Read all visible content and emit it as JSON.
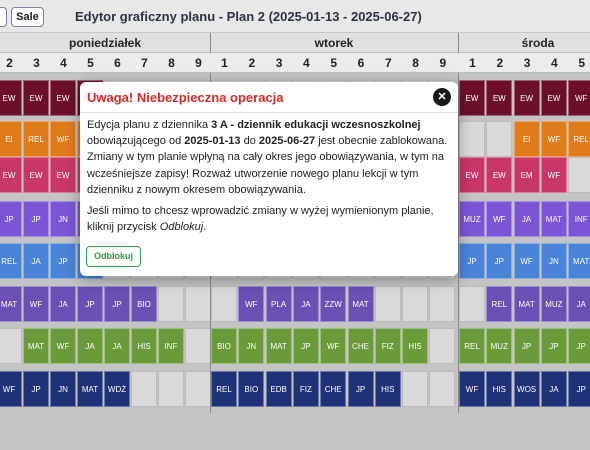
{
  "header": {
    "prev_button_label": "",
    "sale_button_label": "Sale",
    "title": "Edytor graficzny planu - Plan 2 (2025-01-13 - 2025-06-27)"
  },
  "days": [
    "poniedziałek",
    "wtorek",
    "środa"
  ],
  "lesson_numbers": {
    "poniedzialek": [
      "2",
      "3",
      "4",
      "5",
      "6",
      "7",
      "8",
      "9"
    ],
    "wtorek": [
      "1",
      "2",
      "3",
      "4",
      "5",
      "6",
      "7",
      "8",
      "9"
    ],
    "sroda": [
      "1",
      "2",
      "3",
      "4",
      "5"
    ]
  },
  "grid_rows": [
    {
      "cells": [
        {
          "t": "EW",
          "c": "#6b0f2a"
        },
        {
          "t": "EW",
          "c": "#6b0f2a"
        },
        {
          "t": "EW",
          "c": "#6b0f2a"
        },
        {
          "t": "",
          "c": "#6b0f2a"
        },
        {
          "t": "",
          "c": ""
        },
        {
          "t": "",
          "c": ""
        },
        {
          "t": "",
          "c": ""
        },
        {
          "t": "",
          "c": ""
        },
        {
          "t": "",
          "c": ""
        },
        {
          "t": "",
          "c": ""
        },
        {
          "t": "",
          "c": ""
        },
        {
          "t": "",
          "c": ""
        },
        {
          "t": "",
          "c": ""
        },
        {
          "t": "",
          "c": ""
        },
        {
          "t": "",
          "c": ""
        },
        {
          "t": "",
          "c": ""
        },
        {
          "t": "",
          "c": ""
        },
        {
          "t": "EW",
          "c": "#6b0f2a"
        },
        {
          "t": "EW",
          "c": "#6b0f2a"
        },
        {
          "t": "EW",
          "c": "#6b0f2a"
        },
        {
          "t": "EW",
          "c": "#6b0f2a"
        },
        {
          "t": "WF",
          "c": "#6b0f2a"
        }
      ]
    },
    {
      "cells": [
        {
          "t": "EI",
          "c": "#e07b1a"
        },
        {
          "t": "REL",
          "c": "#e07b1a"
        },
        {
          "t": "WF",
          "c": "#e07b1a"
        },
        {
          "t": "",
          "c": "#e07b1a"
        },
        {
          "t": "",
          "c": ""
        },
        {
          "t": "",
          "c": ""
        },
        {
          "t": "",
          "c": ""
        },
        {
          "t": "",
          "c": ""
        },
        {
          "t": "",
          "c": ""
        },
        {
          "t": "",
          "c": ""
        },
        {
          "t": "",
          "c": ""
        },
        {
          "t": "",
          "c": ""
        },
        {
          "t": "",
          "c": ""
        },
        {
          "t": "",
          "c": ""
        },
        {
          "t": "",
          "c": ""
        },
        {
          "t": "",
          "c": ""
        },
        {
          "t": "",
          "c": ""
        },
        {
          "t": "",
          "c": ""
        },
        {
          "t": "",
          "c": ""
        },
        {
          "t": "EI",
          "c": "#e07b1a"
        },
        {
          "t": "WF",
          "c": "#e07b1a"
        },
        {
          "t": "REL",
          "c": "#e07b1a"
        }
      ]
    },
    {
      "cells": [
        {
          "t": "EW",
          "c": "#c9366a"
        },
        {
          "t": "EW",
          "c": "#c9366a"
        },
        {
          "t": "EW",
          "c": "#c9366a"
        },
        {
          "t": "",
          "c": "#c9366a"
        },
        {
          "t": "",
          "c": ""
        },
        {
          "t": "",
          "c": ""
        },
        {
          "t": "",
          "c": ""
        },
        {
          "t": "",
          "c": ""
        },
        {
          "t": "",
          "c": ""
        },
        {
          "t": "",
          "c": ""
        },
        {
          "t": "",
          "c": ""
        },
        {
          "t": "",
          "c": ""
        },
        {
          "t": "",
          "c": ""
        },
        {
          "t": "",
          "c": ""
        },
        {
          "t": "",
          "c": ""
        },
        {
          "t": "",
          "c": ""
        },
        {
          "t": "",
          "c": ""
        },
        {
          "t": "EW",
          "c": "#c9366a"
        },
        {
          "t": "EW",
          "c": "#c9366a"
        },
        {
          "t": "EM",
          "c": "#c9366a"
        },
        {
          "t": "WF",
          "c": "#c9366a"
        },
        {
          "t": "",
          "c": ""
        }
      ]
    },
    {
      "cells": [
        {
          "t": "JP",
          "c": "#7b55d6"
        },
        {
          "t": "JP",
          "c": "#7b55d6"
        },
        {
          "t": "JN",
          "c": "#7b55d6"
        },
        {
          "t": "",
          "c": "#7b55d6"
        },
        {
          "t": "",
          "c": ""
        },
        {
          "t": "",
          "c": ""
        },
        {
          "t": "",
          "c": ""
        },
        {
          "t": "",
          "c": ""
        },
        {
          "t": "",
          "c": ""
        },
        {
          "t": "",
          "c": ""
        },
        {
          "t": "",
          "c": ""
        },
        {
          "t": "",
          "c": ""
        },
        {
          "t": "",
          "c": ""
        },
        {
          "t": "",
          "c": ""
        },
        {
          "t": "",
          "c": ""
        },
        {
          "t": "",
          "c": ""
        },
        {
          "t": "",
          "c": ""
        },
        {
          "t": "MUZ",
          "c": "#7b55d6"
        },
        {
          "t": "WF",
          "c": "#7b55d6"
        },
        {
          "t": "JA",
          "c": "#7b55d6"
        },
        {
          "t": "MAT",
          "c": "#7b55d6"
        },
        {
          "t": "INF",
          "c": "#7b55d6"
        }
      ]
    },
    {
      "cells": [
        {
          "t": "REL",
          "c": "#4a84d8"
        },
        {
          "t": "JA",
          "c": "#4a84d8"
        },
        {
          "t": "JP",
          "c": "#4a84d8"
        },
        {
          "t": "",
          "c": "#4a84d8"
        },
        {
          "t": "",
          "c": ""
        },
        {
          "t": "",
          "c": ""
        },
        {
          "t": "",
          "c": ""
        },
        {
          "t": "",
          "c": ""
        },
        {
          "t": "",
          "c": ""
        },
        {
          "t": "",
          "c": ""
        },
        {
          "t": "",
          "c": ""
        },
        {
          "t": "",
          "c": ""
        },
        {
          "t": "",
          "c": ""
        },
        {
          "t": "",
          "c": ""
        },
        {
          "t": "",
          "c": ""
        },
        {
          "t": "",
          "c": ""
        },
        {
          "t": "",
          "c": ""
        },
        {
          "t": "JP",
          "c": "#4a84d8"
        },
        {
          "t": "JP",
          "c": "#4a84d8"
        },
        {
          "t": "WF",
          "c": "#4a84d8"
        },
        {
          "t": "JN",
          "c": "#4a84d8"
        },
        {
          "t": "MAT",
          "c": "#4a84d8"
        }
      ]
    },
    {
      "cells": [
        {
          "t": "MAT",
          "c": "#6a4fb5"
        },
        {
          "t": "WF",
          "c": "#6a4fb5"
        },
        {
          "t": "JA",
          "c": "#6a4fb5"
        },
        {
          "t": "JP",
          "c": "#6a4fb5"
        },
        {
          "t": "JP",
          "c": "#6a4fb5"
        },
        {
          "t": "BIO",
          "c": "#6a4fb5"
        },
        {
          "t": "",
          "c": ""
        },
        {
          "t": "",
          "c": ""
        },
        {
          "t": "",
          "c": ""
        },
        {
          "t": "WF",
          "c": "#6a4fb5"
        },
        {
          "t": "PLA",
          "c": "#6a4fb5"
        },
        {
          "t": "JA",
          "c": "#6a4fb5"
        },
        {
          "t": "ZZW",
          "c": "#6a4fb5"
        },
        {
          "t": "MAT",
          "c": "#6a4fb5"
        },
        {
          "t": "",
          "c": ""
        },
        {
          "t": "",
          "c": ""
        },
        {
          "t": "",
          "c": ""
        },
        {
          "t": "",
          "c": ""
        },
        {
          "t": "REL",
          "c": "#6a4fb5"
        },
        {
          "t": "MAT",
          "c": "#6a4fb5"
        },
        {
          "t": "MUZ",
          "c": "#6a4fb5"
        },
        {
          "t": "JA",
          "c": "#6a4fb5"
        }
      ]
    },
    {
      "cells": [
        {
          "t": "",
          "c": ""
        },
        {
          "t": "MAT",
          "c": "#6b9a3a"
        },
        {
          "t": "WF",
          "c": "#6b9a3a"
        },
        {
          "t": "JA",
          "c": "#6b9a3a"
        },
        {
          "t": "JA",
          "c": "#6b9a3a"
        },
        {
          "t": "HIS",
          "c": "#6b9a3a"
        },
        {
          "t": "INF",
          "c": "#6b9a3a"
        },
        {
          "t": "",
          "c": ""
        },
        {
          "t": "BIO",
          "c": "#6b9a3a"
        },
        {
          "t": "JN",
          "c": "#6b9a3a"
        },
        {
          "t": "MAT",
          "c": "#6b9a3a"
        },
        {
          "t": "JP",
          "c": "#6b9a3a"
        },
        {
          "t": "WF",
          "c": "#6b9a3a"
        },
        {
          "t": "CHE",
          "c": "#6b9a3a"
        },
        {
          "t": "FIZ",
          "c": "#6b9a3a"
        },
        {
          "t": "HIS",
          "c": "#6b9a3a"
        },
        {
          "t": "",
          "c": ""
        },
        {
          "t": "REL",
          "c": "#6b9a3a"
        },
        {
          "t": "MUZ",
          "c": "#6b9a3a"
        },
        {
          "t": "JP",
          "c": "#6b9a3a"
        },
        {
          "t": "JP",
          "c": "#6b9a3a"
        },
        {
          "t": "JP",
          "c": "#6b9a3a"
        }
      ]
    },
    {
      "cells": [
        {
          "t": "WF",
          "c": "#1f3278"
        },
        {
          "t": "JP",
          "c": "#1f3278"
        },
        {
          "t": "JN",
          "c": "#1f3278"
        },
        {
          "t": "MAT",
          "c": "#1f3278"
        },
        {
          "t": "WDŻ",
          "c": "#1f3278"
        },
        {
          "t": "",
          "c": ""
        },
        {
          "t": "",
          "c": ""
        },
        {
          "t": "",
          "c": ""
        },
        {
          "t": "REL",
          "c": "#1f3278"
        },
        {
          "t": "BIO",
          "c": "#1f3278"
        },
        {
          "t": "EDB",
          "c": "#1f3278"
        },
        {
          "t": "FIZ",
          "c": "#1f3278"
        },
        {
          "t": "CHE",
          "c": "#1f3278"
        },
        {
          "t": "JP",
          "c": "#1f3278"
        },
        {
          "t": "HIS",
          "c": "#1f3278"
        },
        {
          "t": "",
          "c": ""
        },
        {
          "t": "",
          "c": ""
        },
        {
          "t": "WF",
          "c": "#1f3278"
        },
        {
          "t": "HIS",
          "c": "#1f3278"
        },
        {
          "t": "WOS",
          "c": "#1f3278"
        },
        {
          "t": "JA",
          "c": "#1f3278"
        },
        {
          "t": "JP",
          "c": "#1f3278"
        }
      ]
    }
  ],
  "modal": {
    "title": "Uwaga! Niebezpieczna operacja",
    "close_icon": "close-icon",
    "p1_a": "Edycja planu z dziennika ",
    "p1_b": "3 A - dziennik edukacji wczesnoszkolnej",
    "p1_c": " obowiązującego od ",
    "p1_d": "2025-01-13",
    "p1_e": " do ",
    "p1_f": "2025-06-27",
    "p1_g": " jest obecnie zablokowana. Zmiany w tym planie wpłyną na cały okres jego obowiązywania, w tym na wcześniejsze zapisy! Rozważ utworzenie nowego planu lekcji w tym dzienniku z nowym okresem obowiązywania.",
    "p2_a": "Jeśli mimo to chcesz wprowadzić zmiany w wyżej wymienionym planie, kliknij przycisk ",
    "p2_b": "Odblokuj",
    "p2_c": ".",
    "unlock_button": "Odblokuj"
  }
}
